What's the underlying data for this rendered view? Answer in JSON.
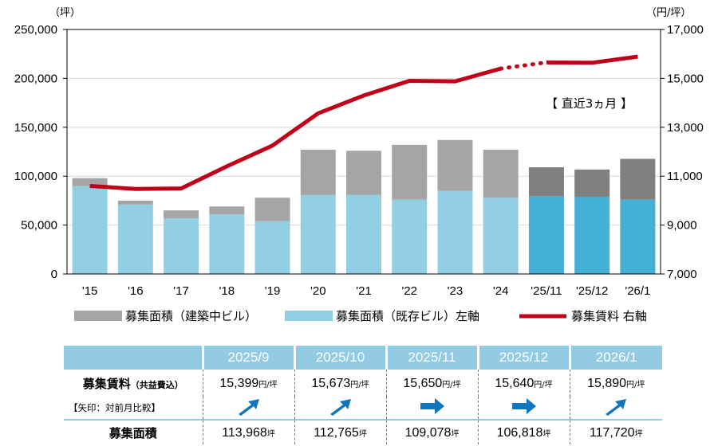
{
  "chart_data": {
    "type": "bar",
    "categories": [
      "'15",
      "'16",
      "'17",
      "'18",
      "'19",
      "'20",
      "'21",
      "'22",
      "'23",
      "'24",
      "'25/11",
      "'25/12",
      "'26/1"
    ],
    "left_axis": {
      "unit": "（坪）",
      "ylim": [
        0,
        250000
      ],
      "ticks": [
        "0",
        "50,000",
        "100,000",
        "150,000",
        "200,000",
        "250,000"
      ]
    },
    "right_axis": {
      "unit": "（円/坪）",
      "ylim": [
        7000,
        17000
      ],
      "ticks": [
        "7,000",
        "9,000",
        "11,000",
        "13,000",
        "15,000",
        "17,000"
      ]
    },
    "series": [
      {
        "name": "募集面積（既存ビル）左軸",
        "type": "bar",
        "axis": "left",
        "values": [
          90000,
          71000,
          57000,
          61000,
          54000,
          81000,
          81000,
          76000,
          85000,
          78000,
          79500,
          79000,
          76000
        ]
      },
      {
        "name": "募集面積（建築中ビル）",
        "type": "bar",
        "axis": "left",
        "values": [
          8000,
          4000,
          8000,
          8000,
          24000,
          46000,
          45000,
          56000,
          52000,
          49000,
          29578,
          27818,
          41720
        ]
      },
      {
        "name": "募集賃料 右軸",
        "type": "line",
        "axis": "right",
        "values": [
          10600,
          10480,
          10500,
          11400,
          12250,
          13570,
          14300,
          14900,
          14880,
          15400,
          15650,
          15640,
          15890
        ]
      }
    ],
    "recent_label": "【 直近3ヵ月 】",
    "colors": {
      "existing": "#93cfe4",
      "existing_recent": "#45b0d5",
      "construction": "#a5a5a5",
      "construction_recent": "#808080",
      "rent_line": "#c00018"
    }
  },
  "table": {
    "months": [
      "2025/9",
      "2025/10",
      "2025/11",
      "2025/12",
      "2026/1"
    ],
    "rent_label": "募集賃料",
    "rent_label_sub": "（共益費込）",
    "arrow_label": "【矢印：対前月比較】",
    "rent_unit": "円/坪",
    "rents": [
      "15,399",
      "15,673",
      "15,650",
      "15,640",
      "15,890"
    ],
    "arrows": [
      "up",
      "up",
      "flat",
      "flat",
      "up"
    ],
    "area_label": "募集面積",
    "area_unit": "坪",
    "areas": [
      "113,968",
      "112,765",
      "109,078",
      "106,818",
      "117,720"
    ],
    "header_color": "#92cbe3",
    "arrow_color": "#0f75bd"
  }
}
